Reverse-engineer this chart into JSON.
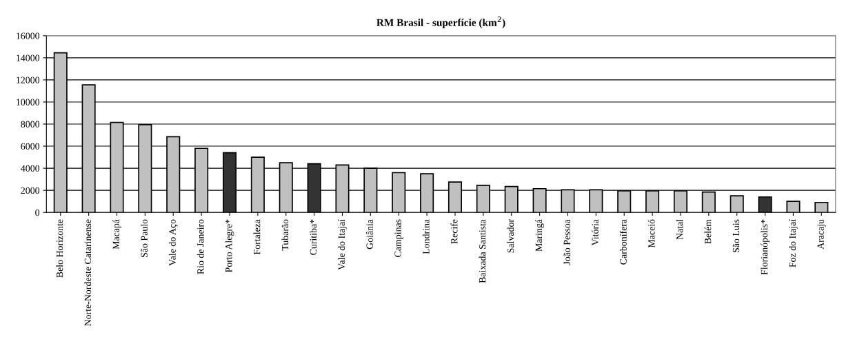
{
  "chart_data": {
    "type": "bar",
    "title": "RM Brasil - superfície (km$^{2}$)",
    "categories": [
      "Belo Horizonte",
      "Norte-Nordeste Catarinense",
      "Macapá",
      "São Paulo",
      "Vale do Aço",
      "Rio de Janeiro",
      "Porto Alegre*",
      "Fortaleza",
      "Tubarão",
      "Curitiba*",
      "Vale do Itajaí",
      "Goiânia",
      "Campinas",
      "Londrina",
      "Recife",
      "Baixada Santista",
      "Salvador",
      "Maringá",
      "João Pessoa",
      "Vitória",
      "Carbonífera",
      "Maceió",
      "Natal",
      "Belém",
      "São Luis",
      "Florianópolis*",
      "Foz do Itajaí",
      "Aracaju"
    ],
    "values": [
      14450,
      11550,
      8150,
      7950,
      6850,
      5800,
      5400,
      5000,
      4500,
      4400,
      4300,
      4000,
      3600,
      3500,
      2750,
      2450,
      2350,
      2150,
      2050,
      2050,
      1950,
      1950,
      1950,
      1850,
      1500,
      1400,
      1000,
      900
    ],
    "colors": [
      "#c0c0c0",
      "#c0c0c0",
      "#c0c0c0",
      "#c0c0c0",
      "#c0c0c0",
      "#c0c0c0",
      "#333333",
      "#c0c0c0",
      "#c0c0c0",
      "#333333",
      "#c0c0c0",
      "#c0c0c0",
      "#c0c0c0",
      "#c0c0c0",
      "#c0c0c0",
      "#c0c0c0",
      "#c0c0c0",
      "#c0c0c0",
      "#c0c0c0",
      "#c0c0c0",
      "#c0c0c0",
      "#c0c0c0",
      "#c0c0c0",
      "#c0c0c0",
      "#c0c0c0",
      "#333333",
      "#c0c0c0",
      "#c0c0c0"
    ],
    "ylim": [
      0,
      16000
    ],
    "yticks": [
      0,
      2000,
      4000,
      6000,
      8000,
      10000,
      12000,
      14000,
      16000
    ],
    "grid": "y",
    "legend": false
  }
}
